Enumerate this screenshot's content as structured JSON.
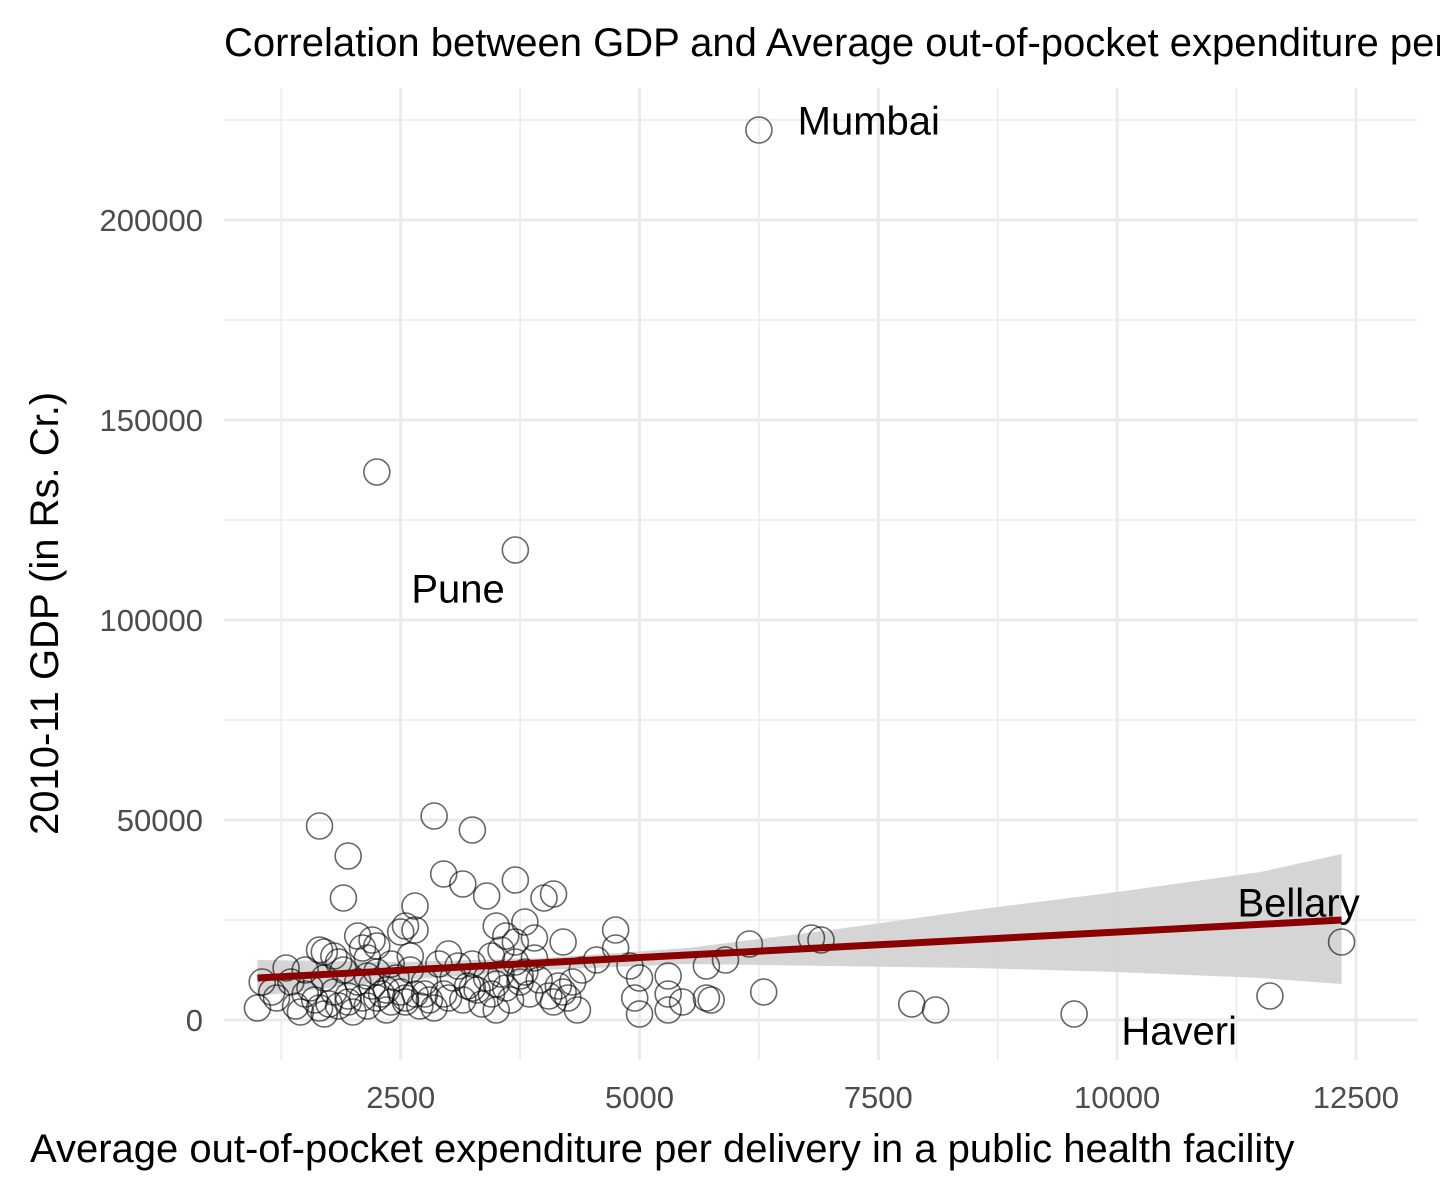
{
  "chart_data": {
    "type": "scatter",
    "title": "Correlation between GDP and Average out-of-pocket expenditure per delivery",
    "xlabel": "Average out-of-pocket expenditure per delivery in a public health facility",
    "ylabel": "2010-11 GDP (in Rs. Cr.)",
    "xlim": [
      650,
      13150
    ],
    "ylim": [
      -10000,
      233000
    ],
    "x_ticks": [
      2500,
      5000,
      7500,
      10000,
      12500
    ],
    "x_tick_labels": [
      "2500",
      "5000",
      "7500",
      "10000",
      "12500"
    ],
    "y_ticks": [
      0,
      50000,
      100000,
      150000,
      200000
    ],
    "y_tick_labels": [
      "0",
      "50000",
      "100000",
      "150000",
      "200000"
    ],
    "grid": true,
    "points": [
      [
        6250,
        222500
      ],
      [
        2250,
        137000
      ],
      [
        3700,
        117500
      ],
      [
        1650,
        48500
      ],
      [
        2850,
        51000
      ],
      [
        3250,
        47500
      ],
      [
        1950,
        41000
      ],
      [
        1900,
        30500
      ],
      [
        2950,
        36500
      ],
      [
        3150,
        34000
      ],
      [
        3400,
        31000
      ],
      [
        3700,
        35000
      ],
      [
        4000,
        30500
      ],
      [
        4100,
        31500
      ],
      [
        2650,
        28500
      ],
      [
        2550,
        23500
      ],
      [
        2650,
        22500
      ],
      [
        2500,
        22000
      ],
      [
        2050,
        21000
      ],
      [
        2200,
        20000
      ],
      [
        2250,
        18500
      ],
      [
        1700,
        17000
      ],
      [
        1650,
        17500
      ],
      [
        1800,
        16000
      ],
      [
        2150,
        15500
      ],
      [
        2100,
        18000
      ],
      [
        3500,
        23500
      ],
      [
        3800,
        24500
      ],
      [
        3600,
        21000
      ],
      [
        3700,
        19500
      ],
      [
        3550,
        17500
      ],
      [
        3900,
        20500
      ],
      [
        4200,
        19500
      ],
      [
        4750,
        22500
      ],
      [
        4750,
        18000
      ],
      [
        4550,
        15000
      ],
      [
        4900,
        13500
      ],
      [
        5300,
        11000
      ],
      [
        5000,
        10500
      ],
      [
        4950,
        5500
      ],
      [
        5300,
        6500
      ],
      [
        5300,
        2500
      ],
      [
        5000,
        1500
      ],
      [
        5450,
        4500
      ],
      [
        5700,
        5500
      ],
      [
        5750,
        5000
      ],
      [
        5700,
        13500
      ],
      [
        5900,
        15000
      ],
      [
        6150,
        19000
      ],
      [
        6300,
        7000
      ],
      [
        6800,
        20500
      ],
      [
        6900,
        20000
      ],
      [
        7850,
        4000
      ],
      [
        8100,
        2500
      ],
      [
        9550,
        1500
      ],
      [
        11600,
        6000
      ],
      [
        12350,
        19500
      ],
      [
        1000,
        3000
      ],
      [
        1050,
        9500
      ],
      [
        1150,
        7000
      ],
      [
        1300,
        13000
      ],
      [
        1350,
        9500
      ],
      [
        1400,
        3500
      ],
      [
        1500,
        12500
      ],
      [
        1500,
        6500
      ],
      [
        1550,
        8000
      ],
      [
        1600,
        5000
      ],
      [
        1650,
        3000
      ],
      [
        1700,
        10500
      ],
      [
        1750,
        4000
      ],
      [
        1800,
        7000
      ],
      [
        1850,
        3500
      ],
      [
        1900,
        12500
      ],
      [
        1950,
        6000
      ],
      [
        2000,
        2000
      ],
      [
        2050,
        9500
      ],
      [
        2100,
        5500
      ],
      [
        2150,
        3500
      ],
      [
        2200,
        8500
      ],
      [
        2250,
        12000
      ],
      [
        2300,
        6500
      ],
      [
        2350,
        2500
      ],
      [
        2400,
        4500
      ],
      [
        2450,
        10500
      ],
      [
        2500,
        7000
      ],
      [
        2550,
        4500
      ],
      [
        2600,
        12500
      ],
      [
        2650,
        6500
      ],
      [
        2700,
        3500
      ],
      [
        2750,
        9500
      ],
      [
        2800,
        5000
      ],
      [
        2850,
        3000
      ],
      [
        2900,
        14000
      ],
      [
        2950,
        6500
      ],
      [
        3000,
        16500
      ],
      [
        3050,
        10500
      ],
      [
        3100,
        13500
      ],
      [
        3150,
        5000
      ],
      [
        3200,
        8500
      ],
      [
        3250,
        14000
      ],
      [
        3300,
        7500
      ],
      [
        3350,
        4000
      ],
      [
        3400,
        10500
      ],
      [
        3450,
        6500
      ],
      [
        3500,
        2500
      ],
      [
        3550,
        11500
      ],
      [
        3600,
        8000
      ],
      [
        3650,
        5000
      ],
      [
        3700,
        14500
      ],
      [
        3750,
        9500
      ],
      [
        3800,
        12000
      ],
      [
        3850,
        6500
      ],
      [
        3900,
        15500
      ],
      [
        3950,
        10000
      ],
      [
        4050,
        6000
      ],
      [
        4100,
        4500
      ],
      [
        4150,
        8500
      ],
      [
        4200,
        7000
      ],
      [
        4250,
        5500
      ],
      [
        4300,
        9500
      ],
      [
        4350,
        2500
      ],
      [
        4400,
        12500
      ],
      [
        1200,
        5500
      ],
      [
        1450,
        2000
      ],
      [
        1700,
        1500
      ],
      [
        1950,
        4500
      ],
      [
        2250,
        5500
      ],
      [
        2550,
        5500
      ],
      [
        2750,
        6500
      ],
      [
        3000,
        5500
      ],
      [
        3250,
        8000
      ],
      [
        3500,
        9000
      ],
      [
        3750,
        11000
      ],
      [
        2400,
        14000
      ],
      [
        2150,
        11000
      ],
      [
        2600,
        16000
      ],
      [
        1850,
        14500
      ],
      [
        2350,
        7500
      ],
      [
        3450,
        16000
      ]
    ],
    "point_labels": [
      {
        "text": "Mumbai",
        "x": 7400,
        "y": 224000
      },
      {
        "text": "Pune",
        "x": 3100,
        "y": 107000
      },
      {
        "text": "Bellary",
        "x": 11900,
        "y": 28500
      },
      {
        "text": "Haveri",
        "x": 10650,
        "y": -3500
      }
    ],
    "trend": {
      "x0": 1000,
      "y0": 10500,
      "x1": 12350,
      "y1": 25000,
      "color": "#8B0000"
    },
    "confidence_band": {
      "upper": [
        [
          1000,
          15000
        ],
        [
          2500,
          14500
        ],
        [
          4000,
          15500
        ],
        [
          5500,
          18000
        ],
        [
          7000,
          22500
        ],
        [
          8500,
          27500
        ],
        [
          10000,
          32000
        ],
        [
          11500,
          37000
        ],
        [
          12350,
          41500
        ]
      ],
      "lower": [
        [
          1000,
          6000
        ],
        [
          2500,
          10000
        ],
        [
          4000,
          12500
        ],
        [
          5500,
          14000
        ],
        [
          7000,
          13500
        ],
        [
          8500,
          13000
        ],
        [
          10000,
          12000
        ],
        [
          11500,
          10500
        ],
        [
          12350,
          9000
        ]
      ],
      "color": "#d3d3d3"
    },
    "colors": {
      "points": "#000000",
      "trend": "#8B0000",
      "band": "#d3d3d3",
      "grid": "#ebebeb"
    }
  }
}
